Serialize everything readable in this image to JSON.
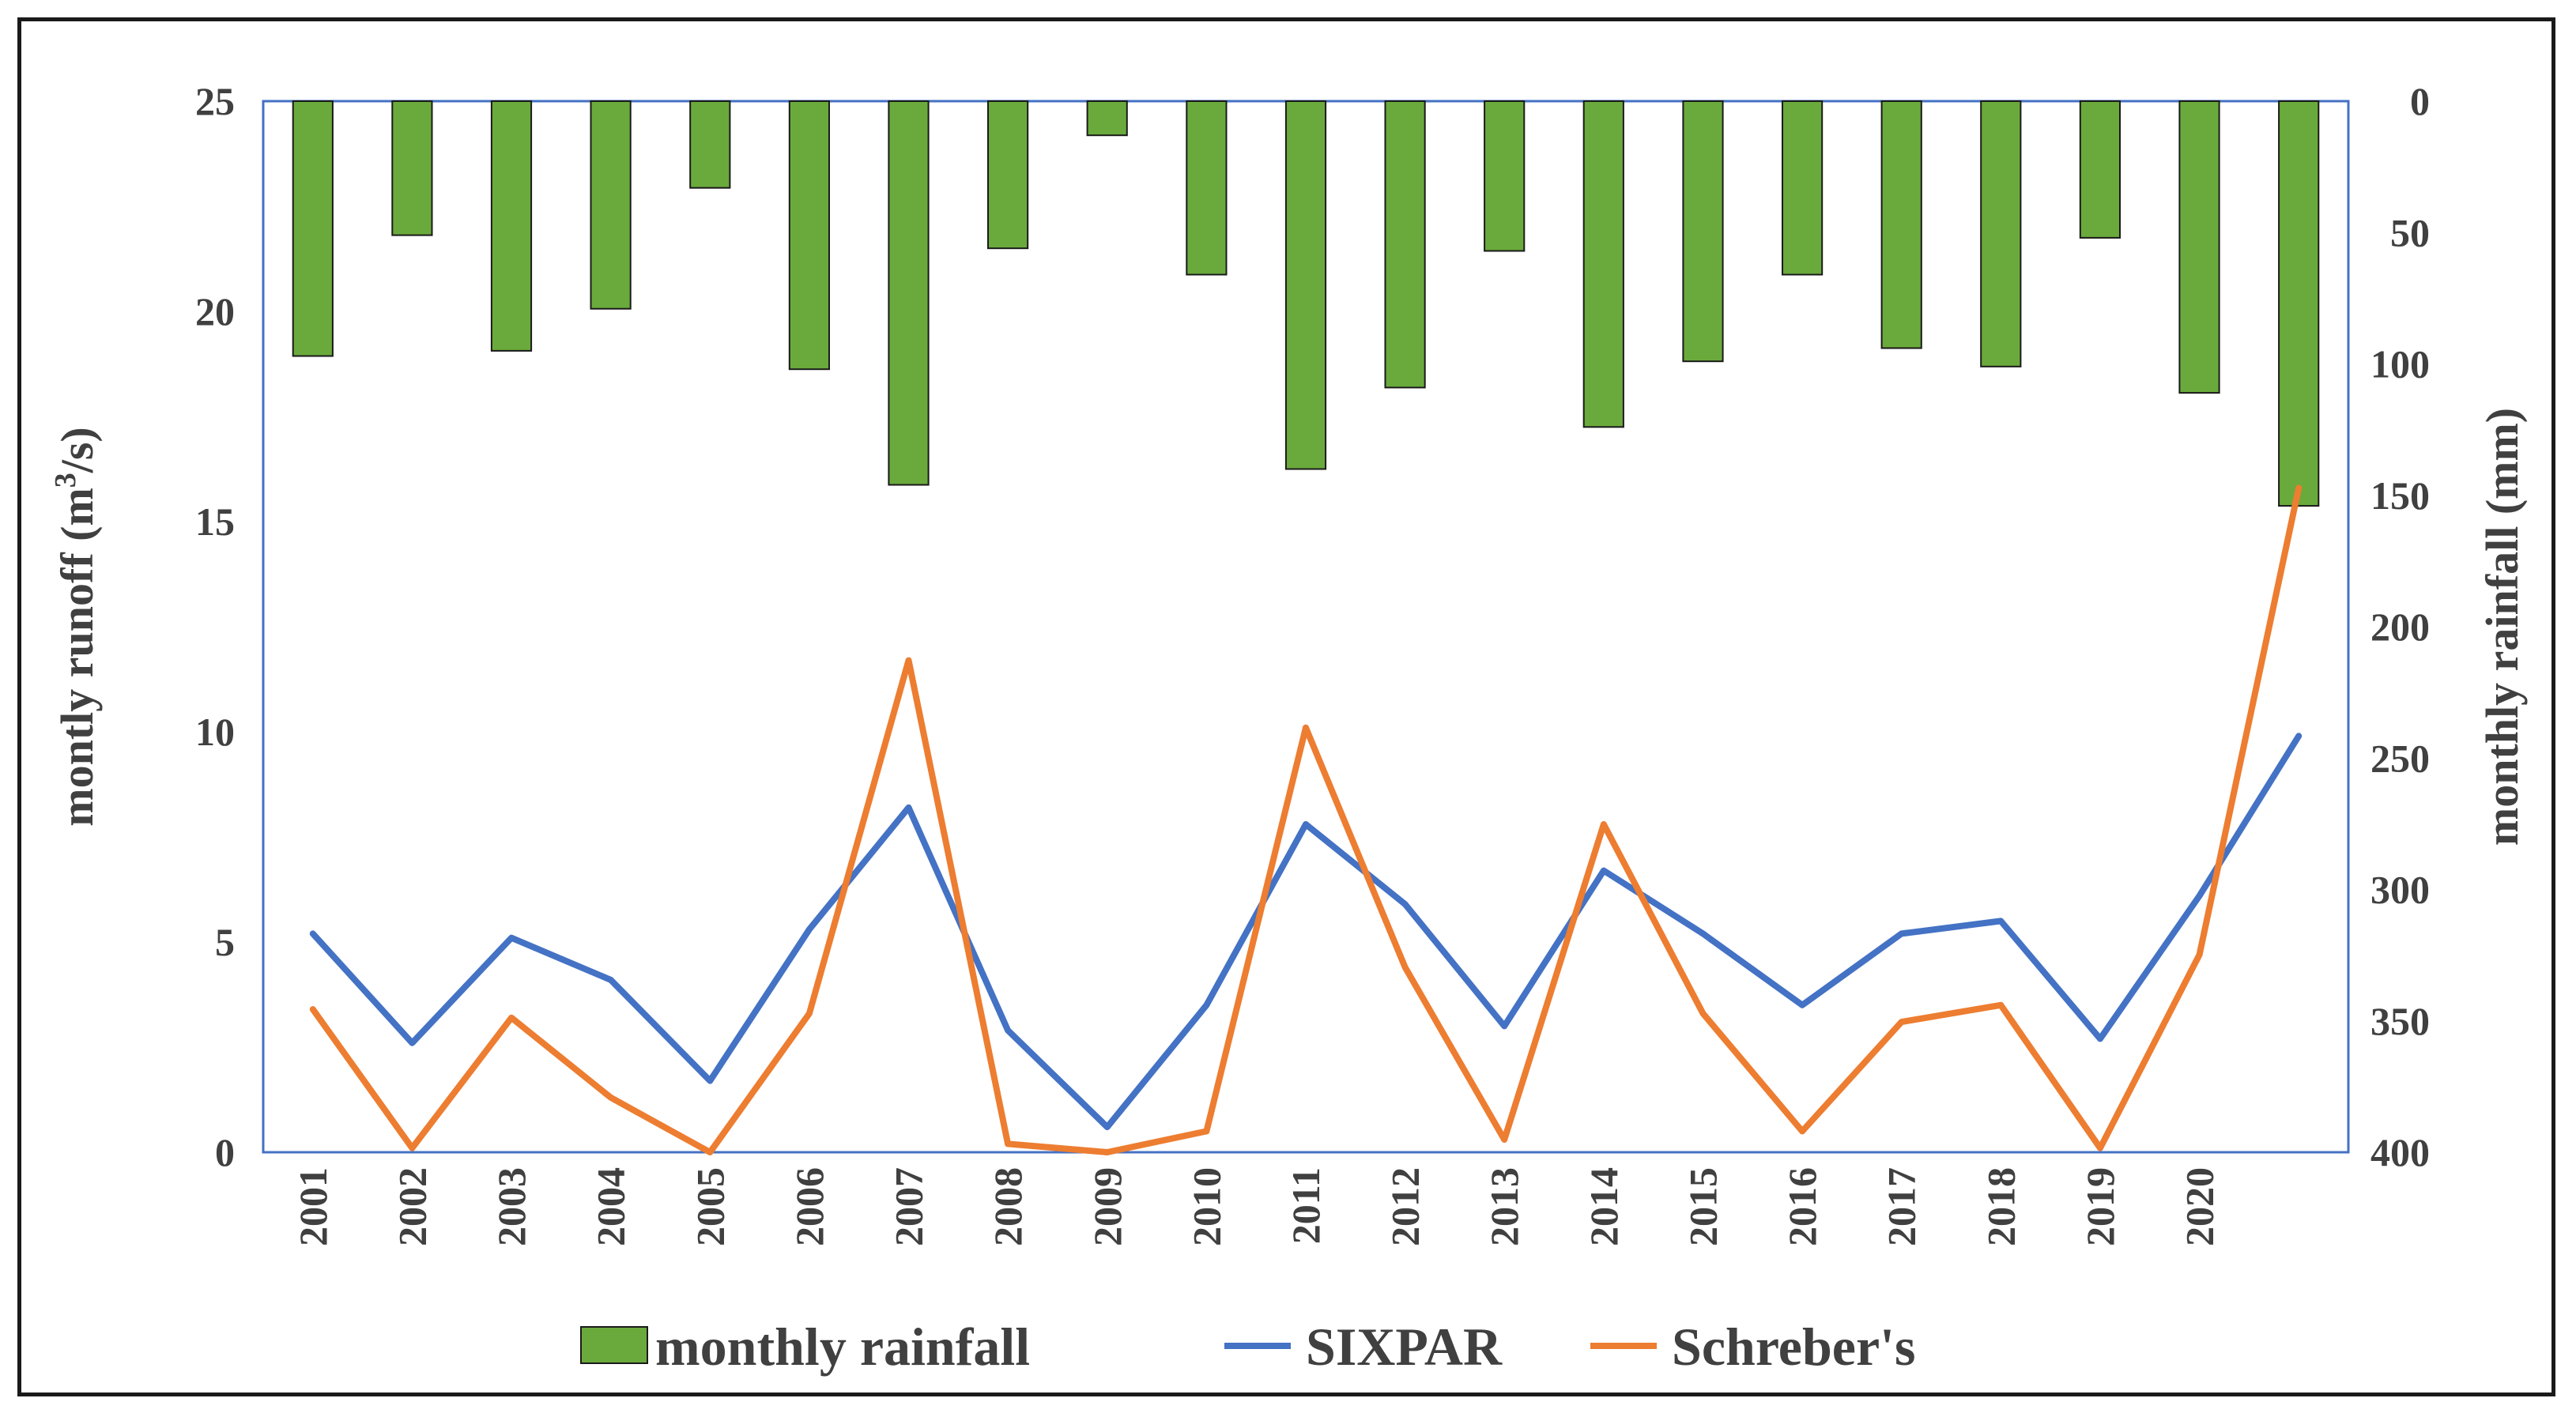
{
  "chart_data": {
    "type": "bar+line",
    "categories": [
      "2001",
      "2002",
      "2003",
      "2004",
      "2005",
      "2006",
      "2007",
      "2008",
      "2009",
      "2010",
      "2011",
      "2012",
      "2013",
      "2014",
      "2015",
      "2016",
      "2017",
      "2018",
      "2019",
      "2020",
      ""
    ],
    "left_axis": {
      "label_main": "montly runoff (m",
      "label_sup": "3",
      "label_tail": "/s)",
      "ylim": [
        0,
        25
      ],
      "ticks": [
        0,
        5,
        10,
        15,
        20,
        25
      ]
    },
    "right_axis": {
      "label": "monthly rainfall (mm)",
      "ylim": [
        0,
        400
      ],
      "inverted": true,
      "ticks": [
        0,
        50,
        100,
        150,
        200,
        250,
        300,
        350,
        400
      ]
    },
    "series": [
      {
        "name": "monthly rainfall",
        "kind": "bar",
        "axis": "right",
        "color": "#6aaa3c",
        "values": [
          97,
          51,
          95,
          79,
          33,
          102,
          146,
          56,
          13,
          66,
          140,
          109,
          57,
          124,
          99,
          66,
          94,
          101,
          52,
          111,
          154
        ]
      },
      {
        "name": "SIXPAR",
        "kind": "line",
        "axis": "left",
        "color": "#4472c4",
        "values": [
          5.2,
          2.6,
          5.1,
          4.1,
          1.7,
          5.3,
          8.2,
          2.9,
          0.6,
          3.5,
          7.8,
          5.9,
          3.0,
          6.7,
          5.2,
          3.5,
          5.2,
          5.5,
          2.7,
          6.1,
          9.9
        ]
      },
      {
        "name": "Schreber's",
        "kind": "line",
        "axis": "left",
        "color": "#ed7d31",
        "values": [
          3.4,
          0.1,
          3.2,
          1.3,
          0.0,
          3.3,
          11.7,
          0.2,
          0.0,
          0.5,
          10.1,
          4.4,
          0.3,
          7.8,
          3.3,
          0.5,
          3.1,
          3.5,
          0.1,
          4.7,
          15.8
        ]
      }
    ],
    "legend_position": "bottom-center",
    "grid": false
  }
}
